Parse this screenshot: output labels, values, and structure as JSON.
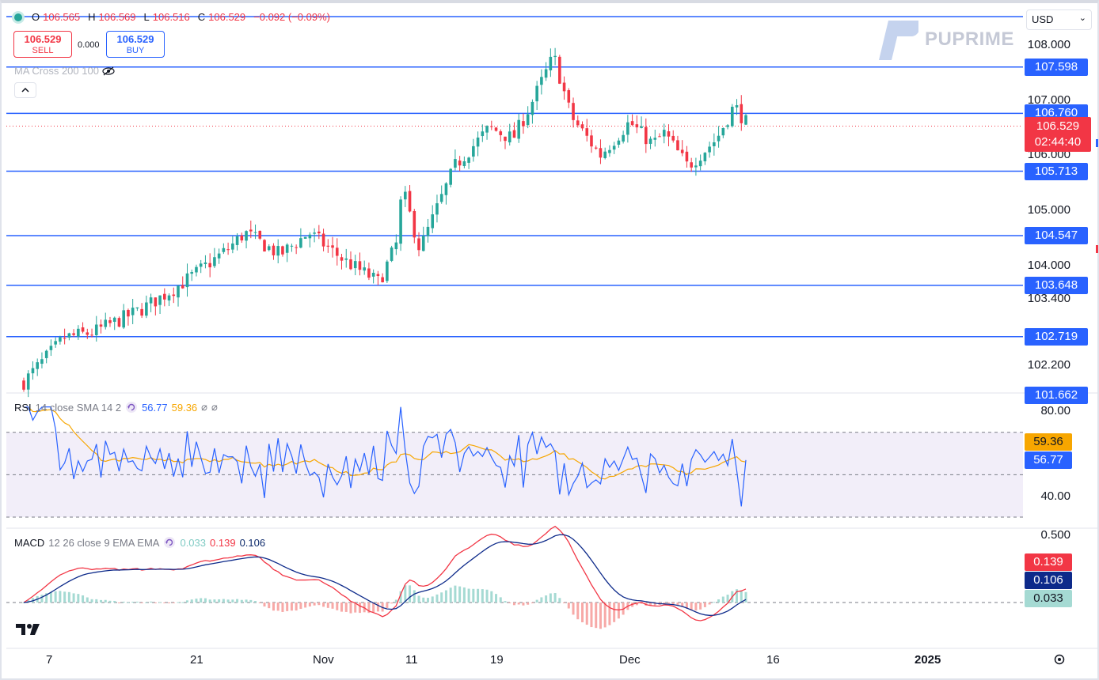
{
  "header": {
    "ohlc": [
      {
        "key": "O",
        "value": "106.565"
      },
      {
        "key": "H",
        "value": "106.569"
      },
      {
        "key": "L",
        "value": "106.516"
      },
      {
        "key": "C",
        "value": "106.529"
      }
    ],
    "change": "−0.092 (−0.09%)",
    "sell": {
      "price": "106.529",
      "label": "SELL"
    },
    "buy": {
      "price": "106.529",
      "label": "BUY"
    },
    "spread": "0.000",
    "ma_label": "MA Cross 200 100",
    "currency": "USD",
    "brand": "PUPRIME"
  },
  "price_axis": {
    "ticks": [
      {
        "label": "108.000",
        "value": 108.0
      },
      {
        "label": "107.000",
        "value": 107.0
      },
      {
        "label": "106.000",
        "value": 106.0
      },
      {
        "label": "105.000",
        "value": 105.0
      },
      {
        "label": "104.000",
        "value": 104.0
      },
      {
        "label": "103.400",
        "value": 103.4
      },
      {
        "label": "102.200",
        "value": 102.2
      }
    ],
    "levels": [
      {
        "label": "107.598",
        "value": 107.598
      },
      {
        "label": "106.760",
        "value": 106.76
      },
      {
        "label": "105.713",
        "value": 105.713
      },
      {
        "label": "104.547",
        "value": 104.547
      },
      {
        "label": "103.648",
        "value": 103.648
      },
      {
        "label": "102.719",
        "value": 102.719
      },
      {
        "label": "101.662",
        "value": 101.662
      }
    ],
    "current_price": "106.529",
    "countdown": "02:44:40"
  },
  "rsi": {
    "label": "RSI",
    "params": "14 close SMA 14 2",
    "rsi_value": "56.77",
    "sma_value": "59.36",
    "ticks": [
      "80.00",
      "40.00"
    ]
  },
  "macd": {
    "label": "MACD",
    "params": "12 26 close 9 EMA EMA",
    "hist_value": "0.033",
    "macd_value": "0.139",
    "signal_value": "0.106",
    "tick": "0.500"
  },
  "time_axis": [
    "7",
    "21",
    "Nov",
    "11",
    "19",
    "Dec",
    "16",
    "2025"
  ],
  "colors": {
    "up": "#26a69a",
    "down": "#f23645",
    "level": "#2962ff",
    "rsi": "#2962ff",
    "rsi_sma": "#f7a600",
    "macd": "#2962ff",
    "signal": "#f23645"
  },
  "chart_data": {
    "type": "candlestick",
    "y_range": [
      101.5,
      108.5
    ],
    "path_points": [
      [
        101.9,
        0
      ],
      [
        102.7,
        0.07
      ],
      [
        102.8,
        0.12
      ],
      [
        103.2,
        0.2
      ],
      [
        103.6,
        0.26
      ],
      [
        103.9,
        0.3
      ],
      [
        104.3,
        0.35
      ],
      [
        104.6,
        0.38
      ],
      [
        104.2,
        0.44
      ],
      [
        104.6,
        0.49
      ],
      [
        104.1,
        0.55
      ],
      [
        103.7,
        0.61
      ],
      [
        104.4,
        0.64
      ],
      [
        105.4,
        0.65
      ],
      [
        104.3,
        0.68
      ],
      [
        104.8,
        0.7
      ],
      [
        105.8,
        0.74
      ],
      [
        106.5,
        0.8
      ],
      [
        106.3,
        0.84
      ],
      [
        106.9,
        0.87
      ],
      [
        107.8,
        0.91
      ],
      [
        106.7,
        0.94
      ],
      [
        106.0,
        0.99
      ],
      [
        106.6,
        1.04
      ],
      [
        106.2,
        1.08
      ],
      [
        106.4,
        1.1
      ],
      [
        105.8,
        1.14
      ],
      [
        106.3,
        1.19
      ],
      [
        106.9,
        1.22
      ],
      [
        106.6,
        1.24
      ]
    ]
  }
}
